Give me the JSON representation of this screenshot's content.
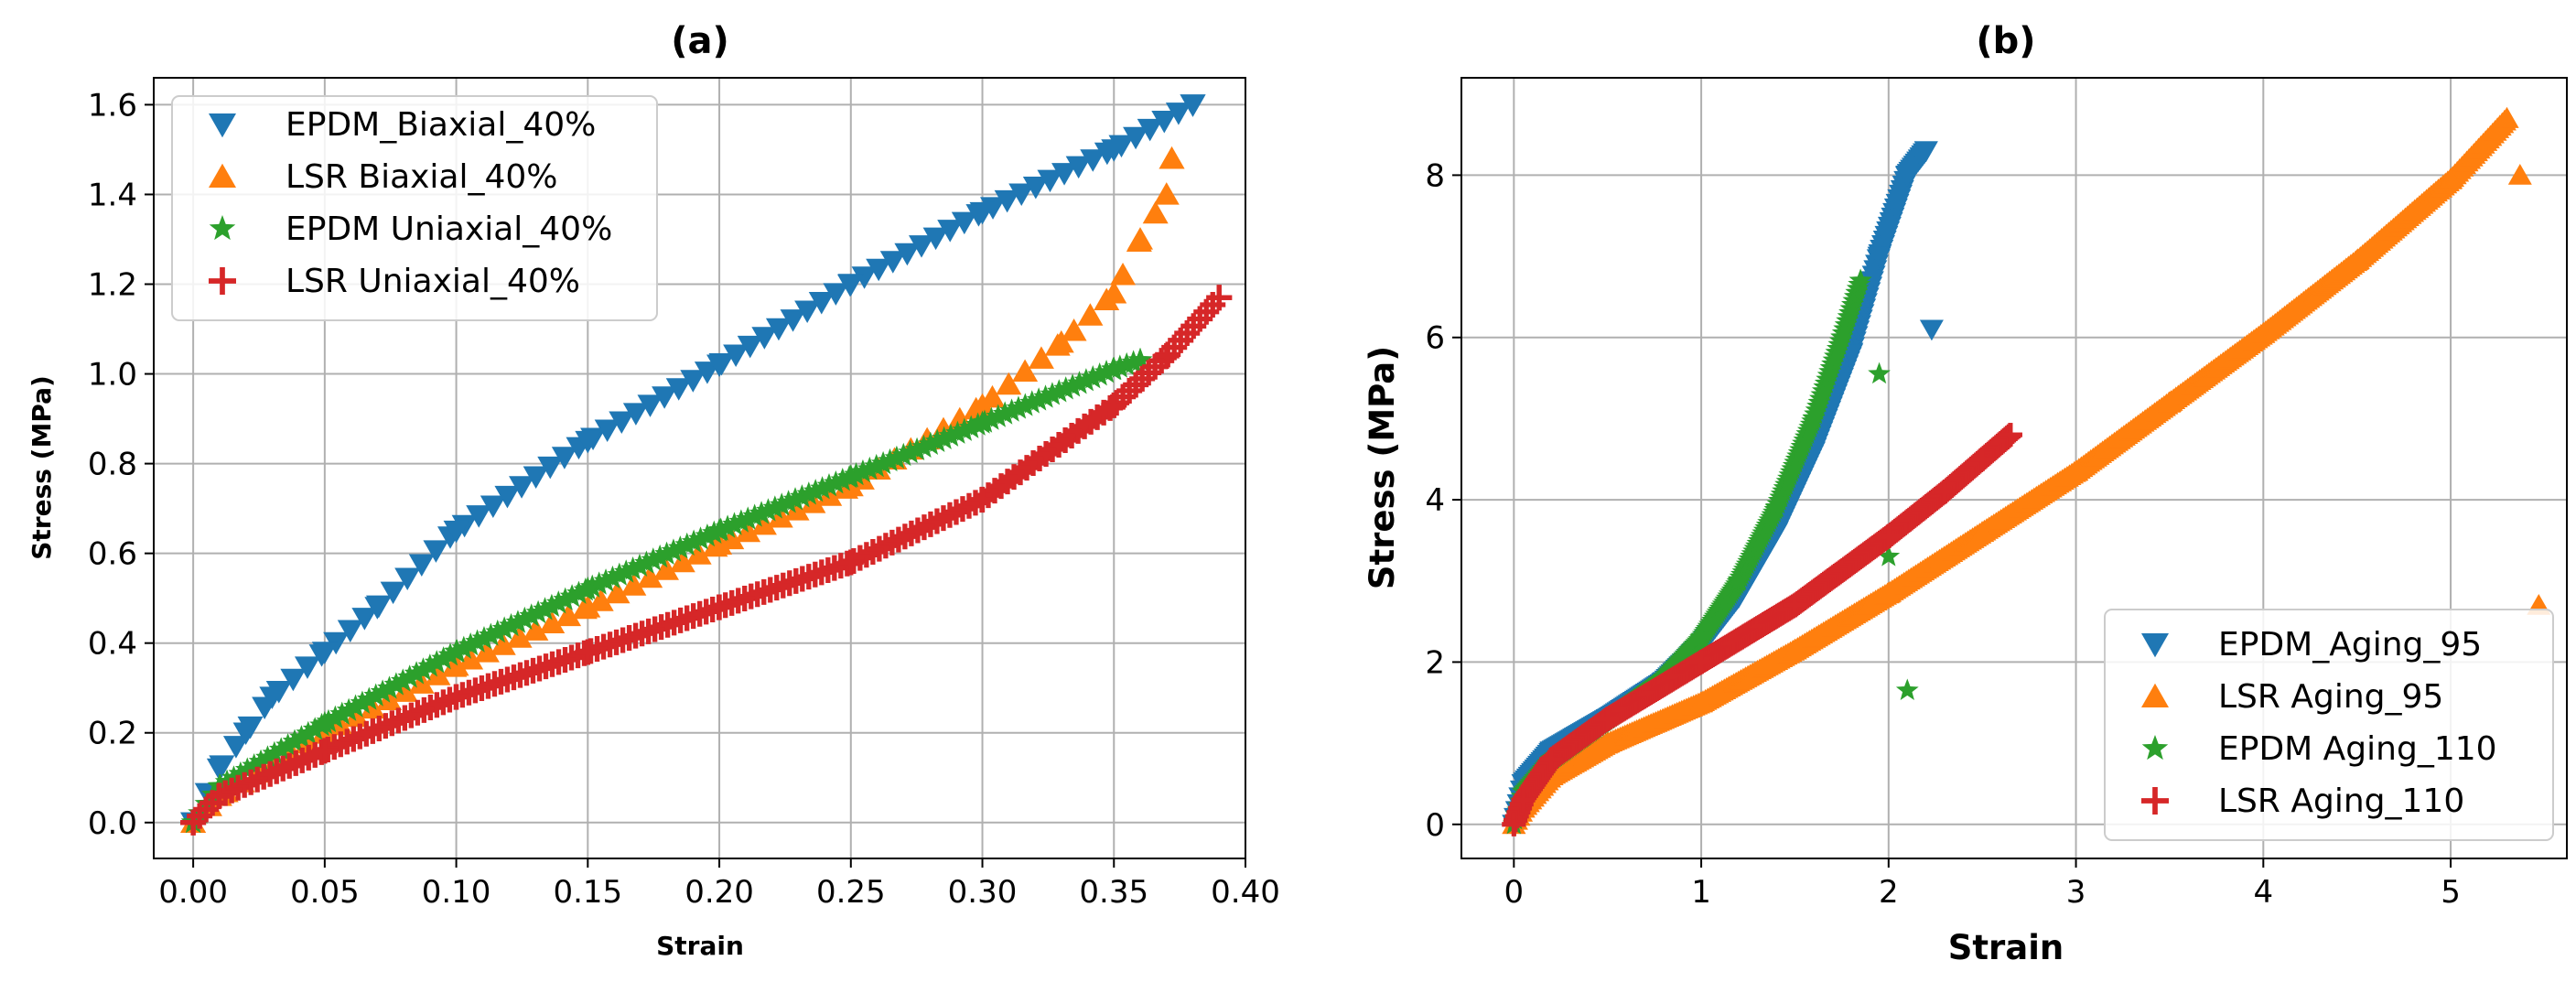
{
  "chart_data": [
    {
      "type": "scatter",
      "title": "(a)",
      "xlabel": "Strain",
      "ylabel": "Stress (MPa)",
      "xlim": [
        -0.015,
        0.4
      ],
      "ylim": [
        -0.08,
        1.66
      ],
      "xticks": [
        0.0,
        0.05,
        0.1,
        0.15,
        0.2,
        0.25,
        0.3,
        0.35,
        0.4
      ],
      "xtick_labels": [
        "0.00",
        "0.05",
        "0.10",
        "0.15",
        "0.20",
        "0.25",
        "0.30",
        "0.35",
        "0.40"
      ],
      "yticks": [
        0.0,
        0.2,
        0.4,
        0.6,
        0.8,
        1.0,
        1.2,
        1.4,
        1.6
      ],
      "ytick_labels": [
        "0.0",
        "0.2",
        "0.4",
        "0.6",
        "0.8",
        "1.0",
        "1.2",
        "1.4",
        "1.6"
      ],
      "grid": true,
      "legend_position": "top-left",
      "series": [
        {
          "name": "EPDM_Biaxial_40%",
          "color": "#1f77b4",
          "marker": "triangle-down",
          "x": [
            0.0,
            0.01,
            0.02,
            0.03,
            0.05,
            0.07,
            0.1,
            0.15,
            0.2,
            0.25,
            0.3,
            0.35,
            0.38
          ],
          "y": [
            0.0,
            0.12,
            0.2,
            0.28,
            0.38,
            0.48,
            0.65,
            0.85,
            1.02,
            1.2,
            1.36,
            1.5,
            1.6
          ]
        },
        {
          "name": "LSR Biaxial_40%",
          "color": "#ff7f0e",
          "marker": "triangle-up",
          "x": [
            0.0,
            0.01,
            0.05,
            0.1,
            0.15,
            0.2,
            0.25,
            0.3,
            0.33,
            0.35,
            0.36,
            0.37,
            0.372
          ],
          "y": [
            0.0,
            0.06,
            0.2,
            0.35,
            0.48,
            0.62,
            0.75,
            0.93,
            1.07,
            1.18,
            1.3,
            1.4,
            1.48
          ]
        },
        {
          "name": "EPDM Uniaxial_40%",
          "color": "#2ca02c",
          "marker": "star",
          "x": [
            0.0,
            0.01,
            0.05,
            0.1,
            0.15,
            0.2,
            0.25,
            0.3,
            0.35,
            0.36
          ],
          "y": [
            0.0,
            0.08,
            0.22,
            0.38,
            0.52,
            0.65,
            0.77,
            0.89,
            1.01,
            1.03
          ]
        },
        {
          "name": "LSR Uniaxial_40%",
          "color": "#d62728",
          "marker": "plus",
          "x": [
            0.0,
            0.01,
            0.05,
            0.1,
            0.15,
            0.2,
            0.25,
            0.3,
            0.35,
            0.37,
            0.39
          ],
          "y": [
            0.0,
            0.06,
            0.16,
            0.28,
            0.38,
            0.48,
            0.58,
            0.72,
            0.93,
            1.04,
            1.17
          ]
        }
      ]
    },
    {
      "type": "scatter",
      "title": "(b)",
      "xlabel": "Strain",
      "ylabel": "Stress (MPa)",
      "xlim": [
        -0.28,
        5.62
      ],
      "ylim": [
        -0.42,
        9.2
      ],
      "xticks": [
        0,
        1,
        2,
        3,
        4,
        5
      ],
      "xtick_labels": [
        "0",
        "1",
        "2",
        "3",
        "4",
        "5"
      ],
      "yticks": [
        0,
        2,
        4,
        6,
        8
      ],
      "ytick_labels": [
        "0",
        "2",
        "4",
        "6",
        "8"
      ],
      "grid": true,
      "legend_position": "bottom-right",
      "series": [
        {
          "name": "EPDM_Aging_95",
          "color": "#1f77b4",
          "marker": "triangle-down",
          "x": [
            0.0,
            0.05,
            0.2,
            0.5,
            0.8,
            1.0,
            1.2,
            1.4,
            1.6,
            1.8,
            1.95,
            2.1,
            2.2
          ],
          "y": [
            0.0,
            0.5,
            0.9,
            1.3,
            1.75,
            2.2,
            2.8,
            3.6,
            4.6,
            5.8,
            7.0,
            8.0,
            8.3
          ],
          "outliers_x": [
            2.23
          ],
          "outliers_y": [
            6.1
          ]
        },
        {
          "name": "LSR Aging_95",
          "color": "#ff7f0e",
          "marker": "triangle-up",
          "x": [
            0.0,
            0.05,
            0.2,
            0.5,
            1.0,
            1.5,
            2.0,
            2.5,
            3.0,
            3.5,
            4.0,
            4.5,
            5.0,
            5.3
          ],
          "y": [
            0.0,
            0.2,
            0.6,
            1.0,
            1.5,
            2.15,
            2.85,
            3.6,
            4.35,
            5.2,
            6.05,
            6.95,
            7.95,
            8.7
          ],
          "outliers_x": [
            5.37,
            5.47
          ],
          "outliers_y": [
            8.0,
            2.7
          ]
        },
        {
          "name": "EPDM Aging_110",
          "color": "#2ca02c",
          "marker": "star",
          "x": [
            0.0,
            0.05,
            0.2,
            0.5,
            0.8,
            1.0,
            1.2,
            1.4,
            1.6,
            1.75,
            1.85
          ],
          "y": [
            0.0,
            0.4,
            0.8,
            1.3,
            1.8,
            2.3,
            3.0,
            3.9,
            5.0,
            6.0,
            6.7
          ],
          "outliers_x": [
            1.95,
            2.0,
            2.1
          ],
          "outliers_y": [
            5.55,
            3.3,
            1.65
          ]
        },
        {
          "name": "LSR Aging_110",
          "color": "#d62728",
          "marker": "plus",
          "x": [
            0.0,
            0.05,
            0.2,
            0.5,
            1.0,
            1.5,
            2.0,
            2.3,
            2.5,
            2.65
          ],
          "y": [
            0.0,
            0.3,
            0.8,
            1.3,
            2.0,
            2.7,
            3.55,
            4.1,
            4.5,
            4.8
          ]
        }
      ]
    }
  ]
}
